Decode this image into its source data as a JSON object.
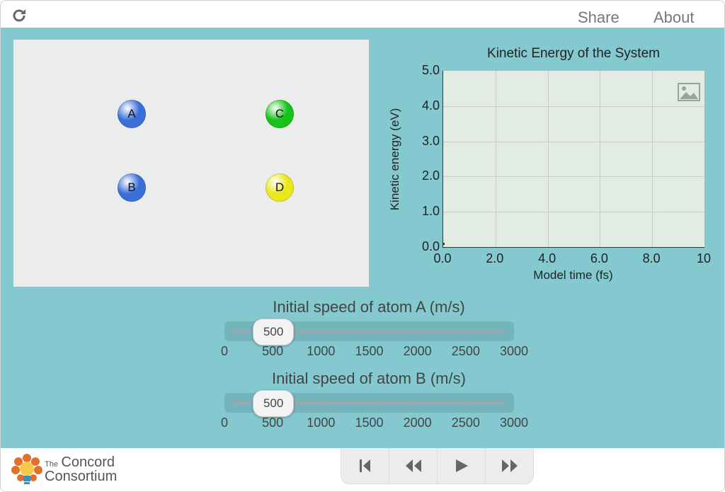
{
  "header": {
    "share_label": "Share",
    "about_label": "About"
  },
  "atoms": [
    {
      "label": "A",
      "color": "#3a6fd8"
    },
    {
      "label": "B",
      "color": "#3a6fd8"
    },
    {
      "label": "C",
      "color": "#18c21a"
    },
    {
      "label": "D",
      "color": "#e8e81c"
    }
  ],
  "chart_data": {
    "type": "line",
    "title": "Kinetic Energy of the System",
    "xlabel": "Model time (fs)",
    "ylabel": "Kinetic energy (eV)",
    "xlim": [
      0,
      10
    ],
    "ylim": [
      0,
      5
    ],
    "x_ticks": [
      "0.0",
      "2.0",
      "4.0",
      "6.0",
      "8.0",
      "10"
    ],
    "y_ticks": [
      "5.0",
      "4.0",
      "3.0",
      "2.0",
      "1.0",
      "0.0"
    ],
    "series": [
      {
        "x": [
          0
        ],
        "y": [
          0
        ]
      }
    ],
    "grid": true
  },
  "sliders": [
    {
      "label": "Initial speed of atom A (m/s)",
      "value": 500,
      "value_label": "500",
      "ticks": [
        "0",
        "500",
        "1000",
        "1500",
        "2000",
        "2500",
        "3000"
      ],
      "min": 0,
      "max": 3000
    },
    {
      "label": "Initial speed of atom B (m/s)",
      "value": 500,
      "value_label": "500",
      "ticks": [
        "0",
        "500",
        "1000",
        "1500",
        "2000",
        "2500",
        "3000"
      ],
      "min": 0,
      "max": 3000
    }
  ],
  "brand": {
    "line1": "The",
    "line1b": "Concord",
    "line2": "Consortium"
  },
  "controls": [
    "reset-icon",
    "step-back-icon",
    "play-icon",
    "step-forward-icon"
  ]
}
